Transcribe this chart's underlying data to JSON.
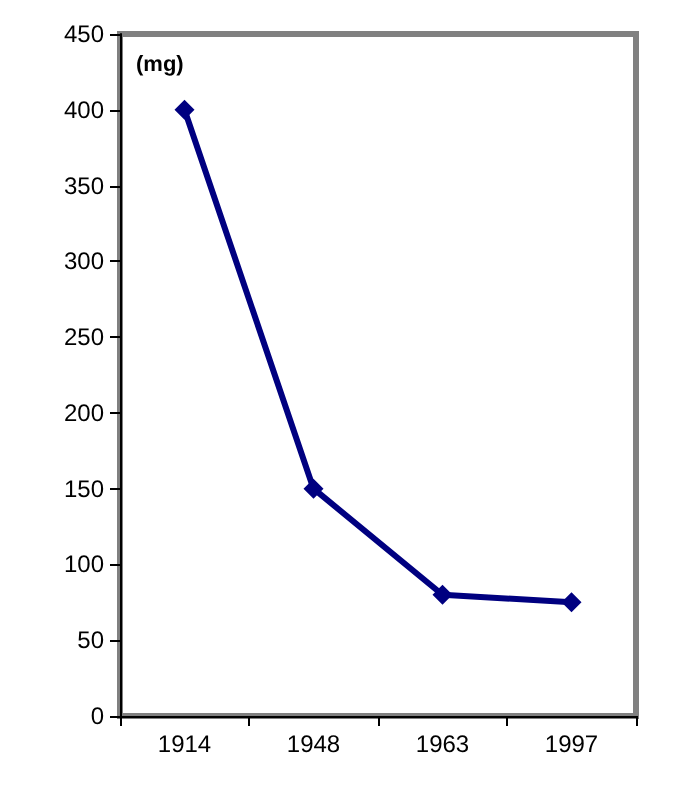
{
  "chart_data": {
    "type": "line",
    "ylabel": "(mg)",
    "categories": [
      "1914",
      "1948",
      "1963",
      "1997"
    ],
    "series": [
      {
        "color": "#000080",
        "values": [
          400,
          150,
          80,
          75
        ]
      }
    ],
    "ylim": [
      0,
      450
    ],
    "yticks": [
      0,
      50,
      100,
      150,
      200,
      250,
      300,
      350,
      400,
      450
    ],
    "grid": false,
    "marker": "diamond",
    "line_style": "solid"
  }
}
